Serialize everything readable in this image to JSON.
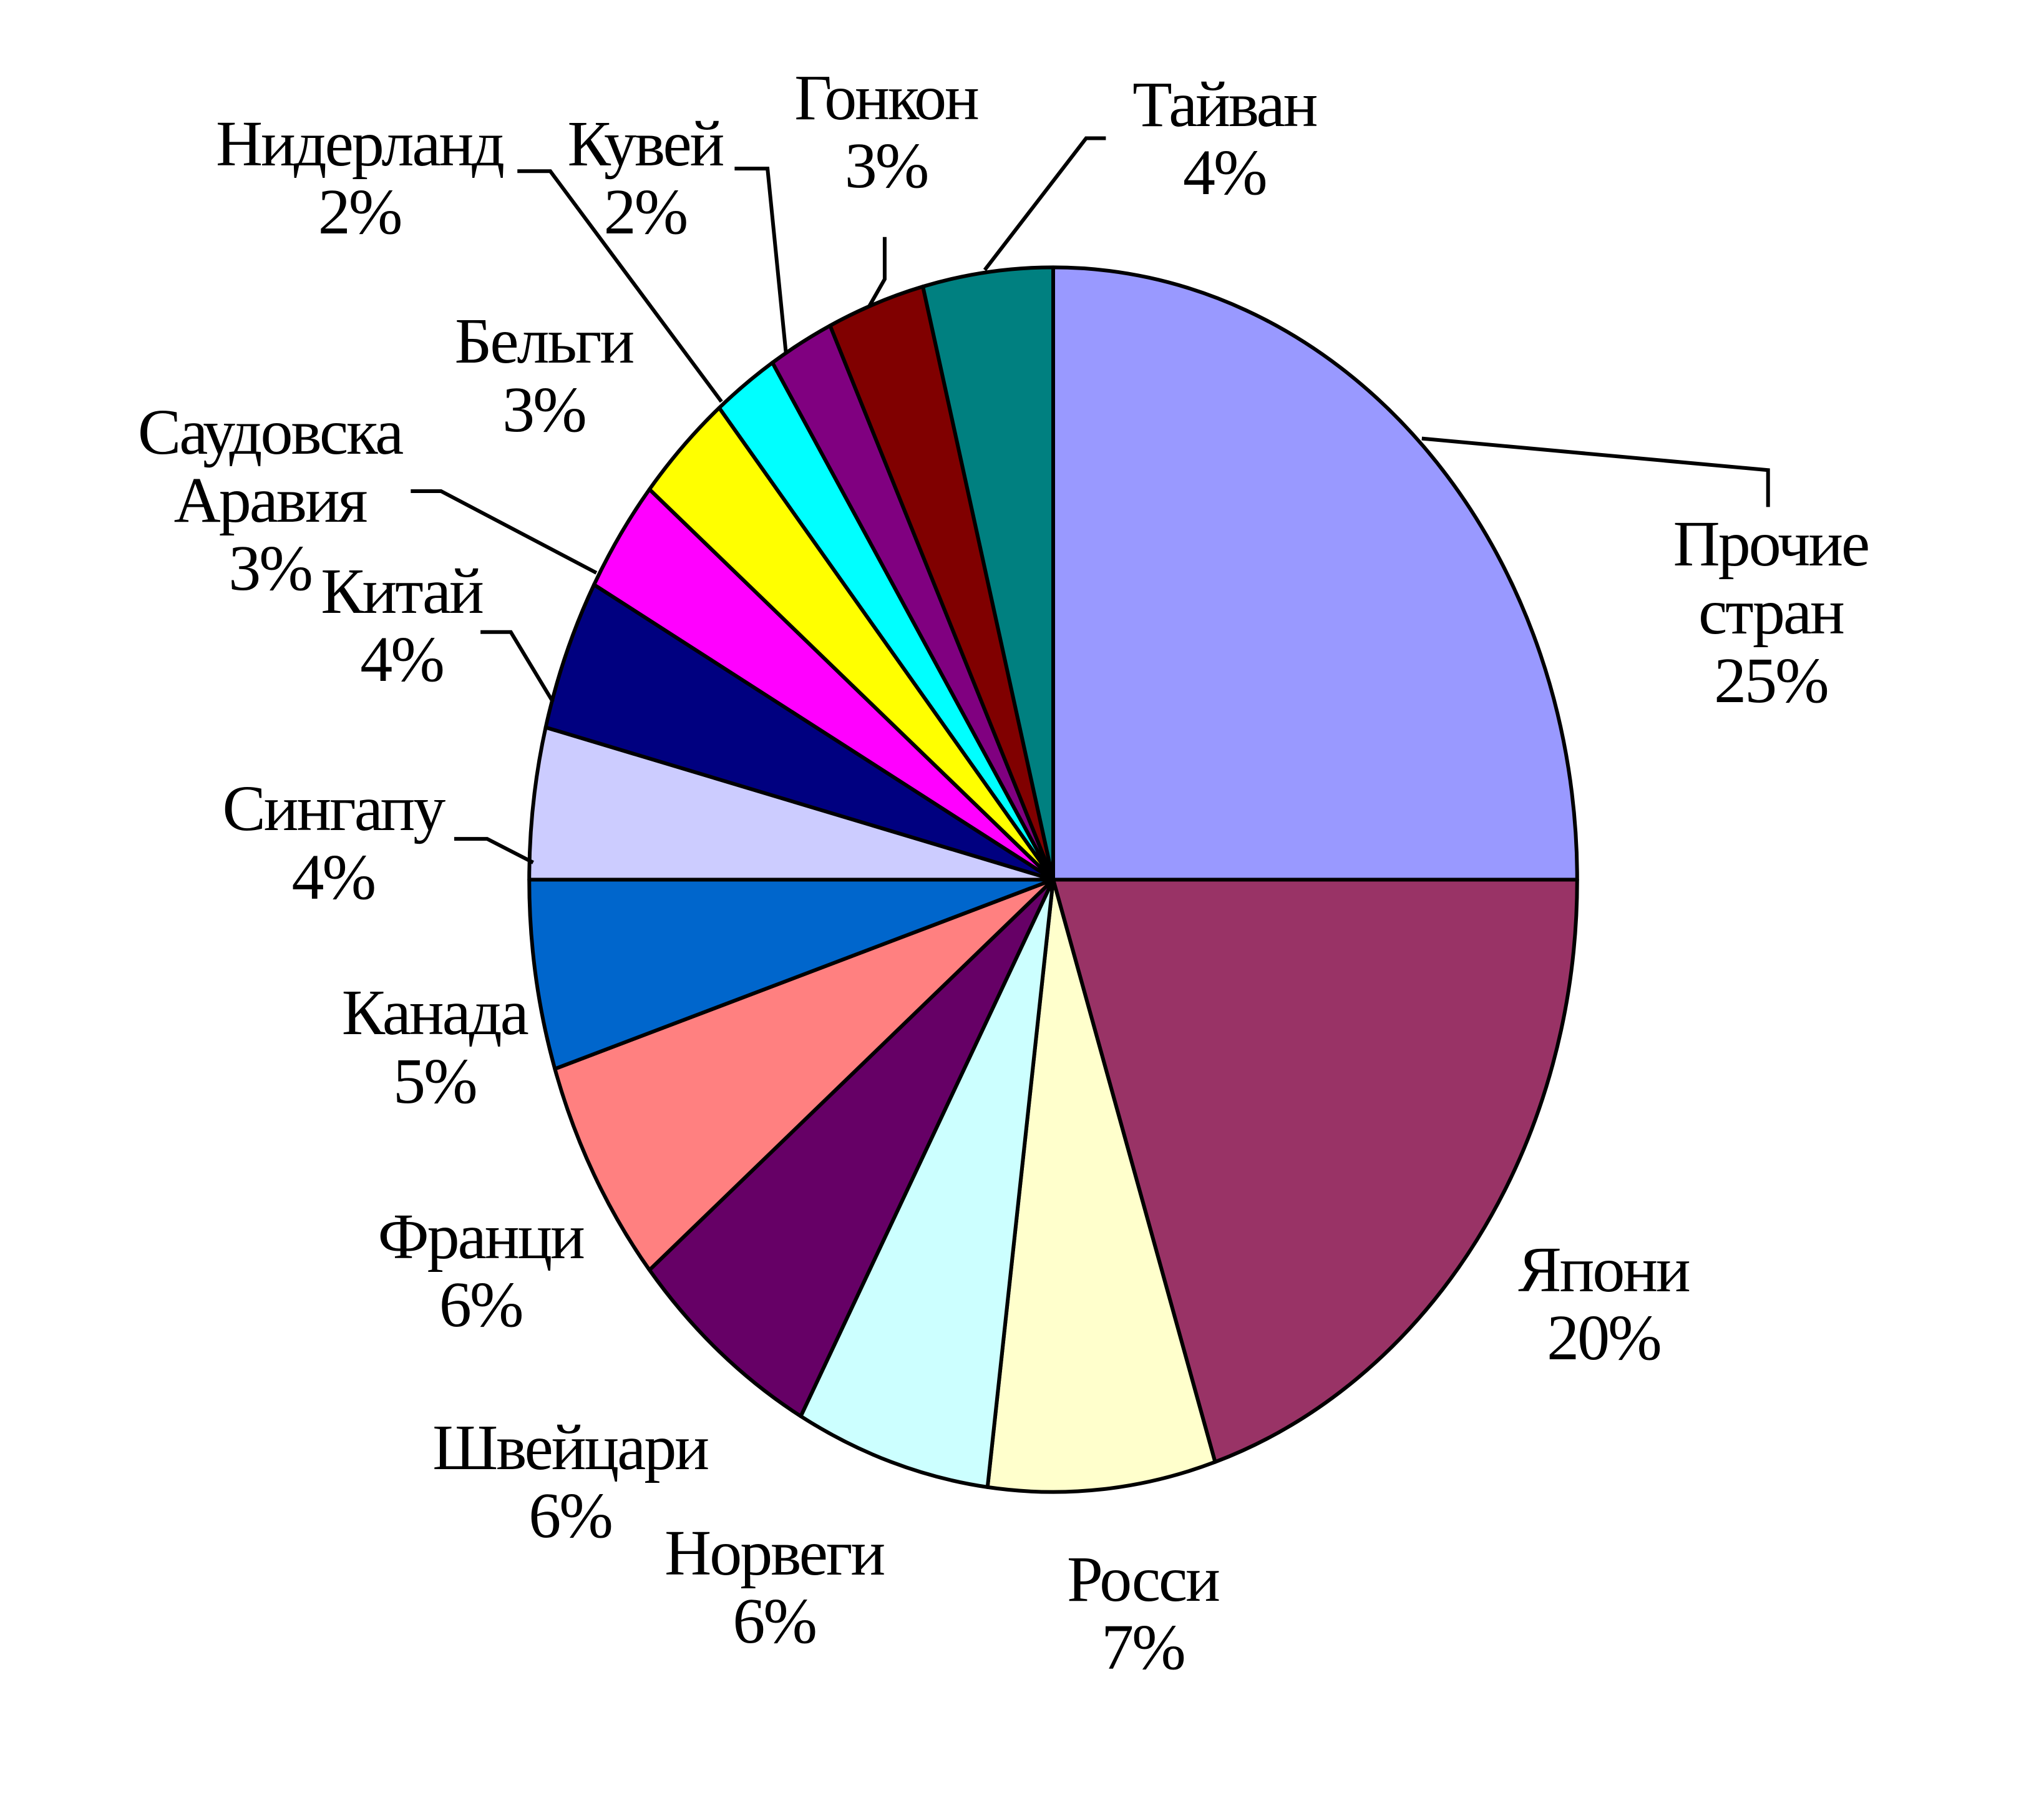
{
  "chart_data": {
    "type": "pie",
    "categories": [
      "Прочие стран",
      "Япони",
      "Росси",
      "Норвеги",
      "Швейцари",
      "Франци",
      "Канада",
      "Сингапу",
      "Китай",
      "Саудовска\nАравия",
      "Бельги",
      "Нидерланд",
      "Кувей",
      "Гонкон",
      "Тайван"
    ],
    "values": [
      25,
      20,
      7,
      6,
      6,
      6,
      5,
      4,
      4,
      3,
      3,
      2,
      2,
      3,
      4
    ],
    "value_labels": [
      "25%",
      "20%",
      "7%",
      "6%",
      "6%",
      "6%",
      "5%",
      "4%",
      "4%",
      "3%",
      "3%",
      "2%",
      "2%",
      "3%",
      "4%"
    ],
    "colors": [
      "#9999FF",
      "#993366",
      "#FFFFCC",
      "#CCFFFF",
      "#660066",
      "#FF8080",
      "#0066CC",
      "#CCCCFF",
      "#000080",
      "#FF00FF",
      "#FFFF00",
      "#00FFFF",
      "#800080",
      "#800000",
      "#008080"
    ]
  }
}
